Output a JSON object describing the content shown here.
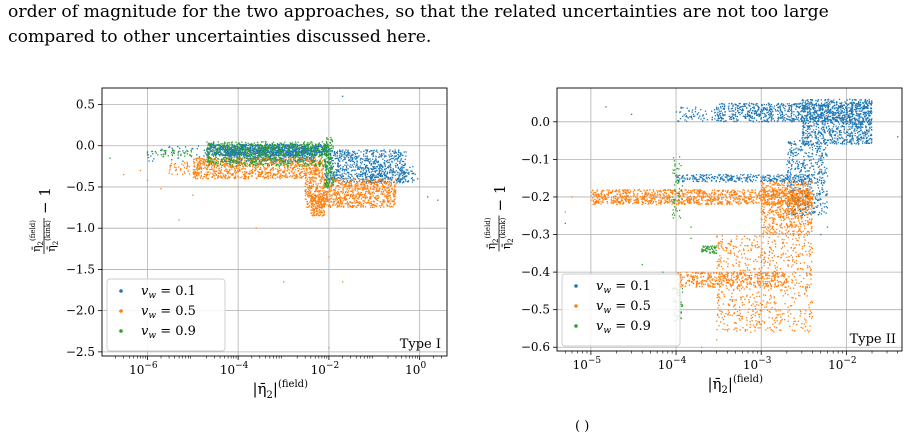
{
  "text": {
    "line1": "order of magnitude for the two approaches, so that the related uncertainties are not too large",
    "line2": "compared to other uncertainties discussed here.",
    "footer_fragment": "( )"
  },
  "colors": {
    "v01": "#1f77b4",
    "v05": "#ff7f0e",
    "v09": "#2ca02c",
    "grid": "#b0b0b0",
    "typelabel": "#808080"
  },
  "chart_data": [
    {
      "type": "scatter",
      "panel": "left",
      "xscale": "log",
      "xlim": [
        1e-07,
        4
      ],
      "ylim": [
        -2.55,
        0.7
      ],
      "xlabel": "|η̄2|(field)",
      "ylabel": "η̄2(field) / η̄2(kink) − 1",
      "xticks": [
        {
          "v": 1e-06,
          "label": "10−6",
          "base": "10",
          "exp": "−6"
        },
        {
          "v": 0.0001,
          "label": "10−4",
          "base": "10",
          "exp": "−4"
        },
        {
          "v": 0.01,
          "label": "10−2",
          "base": "10",
          "exp": "−2"
        },
        {
          "v": 1,
          "label": "100",
          "base": "10",
          "exp": "0"
        }
      ],
      "yticks": [
        {
          "v": 0.5,
          "label": "0.5"
        },
        {
          "v": 0.0,
          "label": "0.0"
        },
        {
          "v": -0.5,
          "label": "−0.5"
        },
        {
          "v": -1.0,
          "label": "−1.0"
        },
        {
          "v": -1.5,
          "label": "−1.5"
        },
        {
          "v": -2.0,
          "label": "−2.0"
        },
        {
          "v": -2.5,
          "label": "−2.5"
        }
      ],
      "annotation": "Type I",
      "legend": {
        "placement": "lower left",
        "entries": [
          {
            "name": "v_w = 0.1",
            "vw": "0.1"
          },
          {
            "name": "v_w = 0.5",
            "vw": "0.5"
          },
          {
            "name": "v_w = 0.9",
            "vw": "0.9"
          }
        ]
      },
      "series": [
        {
          "name": "v_w = 0.1",
          "color": "#1f77b4",
          "clusters": [
            {
              "x": [
                2e-05,
                0.01
              ],
              "y": [
                -0.12,
                0.02
              ],
              "n": 900
            },
            {
              "x": [
                5e-05,
                0.005
              ],
              "y": [
                -0.2,
                -0.02
              ],
              "n": 500
            },
            {
              "x": [
                0.008,
                0.5
              ],
              "y": [
                -0.45,
                -0.05
              ],
              "n": 700
            },
            {
              "x": [
                0.05,
                0.8
              ],
              "y": [
                -0.45,
                -0.25
              ],
              "n": 150
            },
            {
              "x": [
                1e-06,
                2e-05
              ],
              "y": [
                -0.2,
                0.0
              ],
              "n": 40
            }
          ],
          "points": [
            [
              1.5,
              -0.62
            ],
            [
              2.5,
              -0.66
            ],
            [
              0.02,
              0.6
            ],
            [
              0.003,
              -0.55
            ],
            [
              0.9,
              -0.4
            ]
          ]
        },
        {
          "name": "v_w = 0.5",
          "color": "#ff7f0e",
          "clusters": [
            {
              "x": [
                1e-05,
                0.008
              ],
              "y": [
                -0.4,
                -0.15
              ],
              "n": 900
            },
            {
              "x": [
                0.003,
                0.3
              ],
              "y": [
                -0.75,
                -0.4
              ],
              "n": 900
            },
            {
              "x": [
                0.004,
                0.008
              ],
              "y": [
                -0.85,
                -0.6
              ],
              "n": 150
            },
            {
              "x": [
                3e-06,
                3e-05
              ],
              "y": [
                -0.35,
                -0.2
              ],
              "n": 60
            }
          ],
          "points": [
            [
              3e-07,
              -0.35
            ],
            [
              7e-07,
              -0.3
            ],
            [
              2e-06,
              -0.52
            ],
            [
              1e-06,
              -0.42
            ],
            [
              0.00025,
              -1.0
            ],
            [
              0.001,
              -1.65
            ],
            [
              0.01,
              -1.35
            ],
            [
              0.01,
              -2.45
            ],
            [
              0.02,
              -1.65
            ],
            [
              5e-06,
              -0.9
            ],
            [
              1e-05,
              -0.6
            ]
          ]
        },
        {
          "name": "v_w = 0.9",
          "color": "#2ca02c",
          "clusters": [
            {
              "x": [
                2e-05,
                0.01
              ],
              "y": [
                -0.25,
                0.05
              ],
              "n": 700
            },
            {
              "x": [
                0.008,
                0.013
              ],
              "y": [
                -0.5,
                0.1
              ],
              "n": 120
            },
            {
              "x": [
                1e-06,
                1e-05
              ],
              "y": [
                -0.15,
                -0.05
              ],
              "n": 40
            }
          ],
          "points": [
            [
              1.5e-07,
              -0.15
            ],
            [
              0.011,
              0.1
            ],
            [
              0.005,
              -0.6
            ],
            [
              0.004,
              -0.5
            ]
          ]
        }
      ]
    },
    {
      "type": "scatter",
      "panel": "right",
      "xscale": "log",
      "xlim": [
        4e-06,
        0.045
      ],
      "ylim": [
        -0.61,
        0.09
      ],
      "xlabel": "|η̄2|(field)",
      "ylabel": "η̄2(field) / η̄2(kink) − 1",
      "xticks": [
        {
          "v": 1e-05,
          "label": "10−5",
          "base": "10",
          "exp": "−5"
        },
        {
          "v": 0.0001,
          "label": "10−4",
          "base": "10",
          "exp": "−4"
        },
        {
          "v": 0.001,
          "label": "10−3",
          "base": "10",
          "exp": "−3"
        },
        {
          "v": 0.01,
          "label": "10−2",
          "base": "10",
          "exp": "−2"
        }
      ],
      "yticks": [
        {
          "v": 0.0,
          "label": "0.0"
        },
        {
          "v": -0.1,
          "label": "−0.1"
        },
        {
          "v": -0.2,
          "label": "−0.2"
        },
        {
          "v": -0.3,
          "label": "−0.3"
        },
        {
          "v": -0.4,
          "label": "−0.4"
        },
        {
          "v": -0.5,
          "label": "−0.5"
        },
        {
          "v": -0.6,
          "label": "−0.6"
        }
      ],
      "annotation": "Type II",
      "legend": {
        "placement": "lower left",
        "entries": [
          {
            "name": "v_w = 0.1",
            "vw": "0.1"
          },
          {
            "name": "v_w = 0.5",
            "vw": "0.5"
          },
          {
            "name": "v_w = 0.9",
            "vw": "0.9"
          }
        ]
      },
      "series": [
        {
          "name": "v_w = 0.1",
          "color": "#1f77b4",
          "clusters": [
            {
              "x": [
                0.0003,
                0.02
              ],
              "y": [
                0.0,
                0.05
              ],
              "n": 800
            },
            {
              "x": [
                0.003,
                0.02
              ],
              "y": [
                -0.06,
                0.06
              ],
              "n": 900
            },
            {
              "x": [
                0.002,
                0.006
              ],
              "y": [
                -0.25,
                -0.05
              ],
              "n": 500
            },
            {
              "x": [
                0.0001,
                0.004
              ],
              "y": [
                -0.16,
                -0.14
              ],
              "n": 300
            },
            {
              "x": [
                0.0001,
                0.0003
              ],
              "y": [
                0.0,
                0.04
              ],
              "n": 60
            }
          ],
          "points": [
            [
              0.04,
              -0.04
            ],
            [
              1.5e-05,
              0.04
            ],
            [
              3e-05,
              0.02
            ],
            [
              0.005,
              -0.3
            ],
            [
              0.006,
              -0.28
            ]
          ]
        },
        {
          "name": "v_w = 0.5",
          "color": "#ff7f0e",
          "clusters": [
            {
              "x": [
                1e-05,
                0.004
              ],
              "y": [
                -0.22,
                -0.18
              ],
              "n": 1100
            },
            {
              "x": [
                0.001,
                0.004
              ],
              "y": [
                -0.3,
                -0.16
              ],
              "n": 600
            },
            {
              "x": [
                0.0003,
                0.004
              ],
              "y": [
                -0.56,
                -0.3
              ],
              "n": 700
            },
            {
              "x": [
                0.0001,
                0.002
              ],
              "y": [
                -0.44,
                -0.4
              ],
              "n": 400
            }
          ],
          "points": [
            [
              6e-06,
              -0.2
            ],
            [
              5e-06,
              -0.24
            ],
            [
              0.0003,
              -0.58
            ],
            [
              0.0002,
              -0.6
            ],
            [
              5e-05,
              -0.43
            ],
            [
              4e-05,
              -0.22
            ]
          ]
        },
        {
          "name": "v_w = 0.9",
          "color": "#2ca02c",
          "clusters": [
            {
              "x": [
                9e-05,
                0.00012
              ],
              "y": [
                -0.26,
                -0.08
              ],
              "n": 50
            },
            {
              "x": [
                0.0002,
                0.0003
              ],
              "y": [
                -0.35,
                -0.33
              ],
              "n": 60
            },
            {
              "x": [
                9e-05,
                0.00012
              ],
              "y": [
                -0.53,
                -0.44
              ],
              "n": 50
            }
          ],
          "points": [
            [
              5e-06,
              -0.27
            ],
            [
              4e-05,
              -0.38
            ],
            [
              0.00015,
              -0.31
            ],
            [
              7e-05,
              -0.4
            ],
            [
              0.00016,
              -0.43
            ],
            [
              0.00015,
              -0.28
            ]
          ]
        }
      ]
    }
  ]
}
